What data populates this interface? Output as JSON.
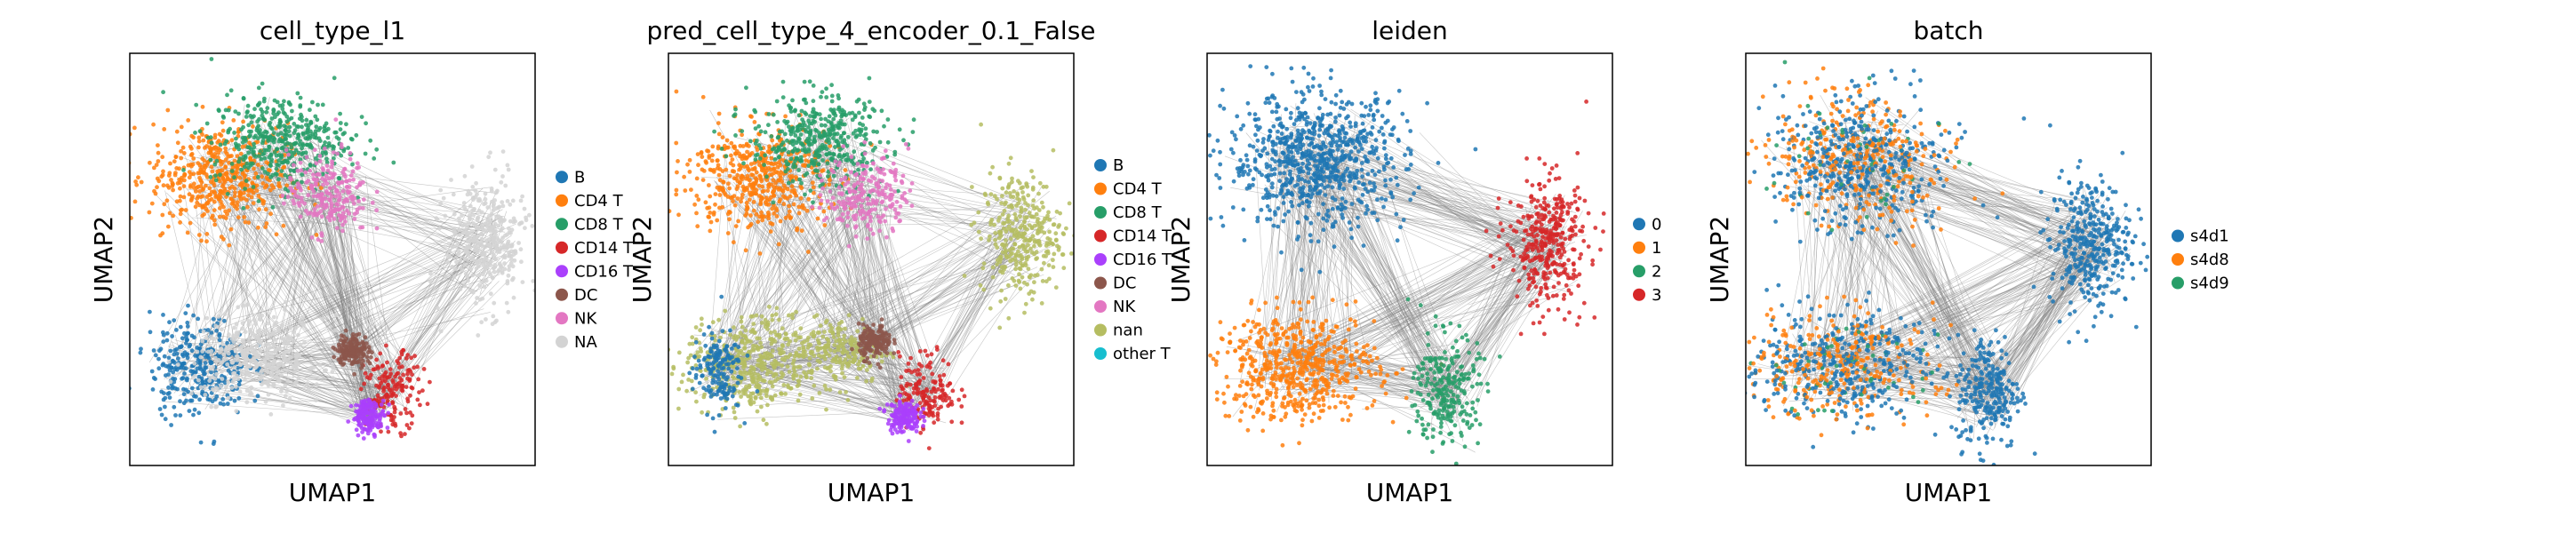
{
  "figure": {
    "background": "#ffffff",
    "edge_color": "#808080",
    "panel_border_color": "#000000"
  },
  "chart_data": [
    {
      "type": "scatter",
      "title": "cell_type_l1",
      "xlabel": "UMAP1",
      "ylabel": "UMAP2",
      "legend": {
        "placement": "right",
        "entries": [
          {
            "label": "B",
            "color": "#1f77b4"
          },
          {
            "label": "CD4 T",
            "color": "#ff7f0e"
          },
          {
            "label": "CD8 T",
            "color": "#279e68"
          },
          {
            "label": "CD14 T",
            "color": "#d62728"
          },
          {
            "label": "CD16 T",
            "color": "#aa40fc"
          },
          {
            "label": "DC",
            "color": "#8c564b"
          },
          {
            "label": "NK",
            "color": "#e377c2"
          },
          {
            "label": "NA",
            "color": "#d3d3d3"
          }
        ]
      },
      "clusters": [
        {
          "label": "CD4 T",
          "x": 0.22,
          "y": 0.7,
          "sx": 0.085,
          "sy": 0.065
        },
        {
          "label": "CD8 T",
          "x": 0.37,
          "y": 0.79,
          "sx": 0.085,
          "sy": 0.055
        },
        {
          "label": "NK",
          "x": 0.49,
          "y": 0.66,
          "sx": 0.05,
          "sy": 0.05
        },
        {
          "label": "B",
          "x": 0.17,
          "y": 0.24,
          "sx": 0.06,
          "sy": 0.06
        },
        {
          "label": "NA",
          "x": 0.32,
          "y": 0.26,
          "sx": 0.08,
          "sy": 0.05
        },
        {
          "label": "NA",
          "x": 0.88,
          "y": 0.54,
          "sx": 0.05,
          "sy": 0.08
        },
        {
          "label": "CD14 T",
          "x": 0.65,
          "y": 0.18,
          "sx": 0.035,
          "sy": 0.045
        },
        {
          "label": "CD16 T",
          "x": 0.59,
          "y": 0.12,
          "sx": 0.02,
          "sy": 0.02
        },
        {
          "label": "DC",
          "x": 0.55,
          "y": 0.28,
          "sx": 0.02,
          "sy": 0.02
        }
      ]
    },
    {
      "type": "scatter",
      "title": "pred_cell_type_4_encoder_0.1_False",
      "xlabel": "UMAP1",
      "ylabel": "UMAP2",
      "legend": {
        "placement": "right",
        "entries": [
          {
            "label": "B",
            "color": "#1f77b4"
          },
          {
            "label": "CD4 T",
            "color": "#ff7f0e"
          },
          {
            "label": "CD8 T",
            "color": "#279e68"
          },
          {
            "label": "CD14 T",
            "color": "#d62728"
          },
          {
            "label": "CD16 T",
            "color": "#aa40fc"
          },
          {
            "label": "DC",
            "color": "#8c564b"
          },
          {
            "label": "NK",
            "color": "#e377c2"
          },
          {
            "label": "nan",
            "color": "#b5bd61"
          },
          {
            "label": "other T",
            "color": "#17becf"
          }
        ]
      },
      "clusters": [
        {
          "label": "CD4 T",
          "x": 0.22,
          "y": 0.7,
          "sx": 0.085,
          "sy": 0.065
        },
        {
          "label": "CD8 T",
          "x": 0.37,
          "y": 0.79,
          "sx": 0.085,
          "sy": 0.055
        },
        {
          "label": "NK",
          "x": 0.49,
          "y": 0.66,
          "sx": 0.05,
          "sy": 0.05
        },
        {
          "label": "nan",
          "x": 0.2,
          "y": 0.24,
          "sx": 0.08,
          "sy": 0.06
        },
        {
          "label": "nan",
          "x": 0.42,
          "y": 0.28,
          "sx": 0.06,
          "sy": 0.04
        },
        {
          "label": "nan",
          "x": 0.87,
          "y": 0.56,
          "sx": 0.05,
          "sy": 0.075
        },
        {
          "label": "B",
          "x": 0.12,
          "y": 0.23,
          "sx": 0.03,
          "sy": 0.05
        },
        {
          "label": "CD14 T",
          "x": 0.64,
          "y": 0.18,
          "sx": 0.035,
          "sy": 0.045
        },
        {
          "label": "CD16 T",
          "x": 0.58,
          "y": 0.12,
          "sx": 0.02,
          "sy": 0.02
        },
        {
          "label": "DC",
          "x": 0.51,
          "y": 0.3,
          "sx": 0.02,
          "sy": 0.02
        }
      ]
    },
    {
      "type": "scatter",
      "title": "leiden",
      "xlabel": "UMAP1",
      "ylabel": "UMAP2",
      "legend": {
        "placement": "right",
        "entries": [
          {
            "label": "0",
            "color": "#1f77b4"
          },
          {
            "label": "1",
            "color": "#ff7f0e"
          },
          {
            "label": "2",
            "color": "#279e68"
          },
          {
            "label": "3",
            "color": "#d62728"
          }
        ]
      },
      "clusters": [
        {
          "label": "0",
          "x": 0.27,
          "y": 0.74,
          "sx": 0.11,
          "sy": 0.08
        },
        {
          "label": "1",
          "x": 0.22,
          "y": 0.24,
          "sx": 0.1,
          "sy": 0.065
        },
        {
          "label": "2",
          "x": 0.59,
          "y": 0.18,
          "sx": 0.04,
          "sy": 0.07
        },
        {
          "label": "3",
          "x": 0.84,
          "y": 0.54,
          "sx": 0.05,
          "sy": 0.08
        }
      ]
    },
    {
      "type": "scatter",
      "title": "batch",
      "xlabel": "UMAP1",
      "ylabel": "UMAP2",
      "legend": {
        "placement": "right",
        "entries": [
          {
            "label": "s4d1",
            "color": "#1f77b4"
          },
          {
            "label": "s4d8",
            "color": "#ff7f0e"
          },
          {
            "label": "s4d9",
            "color": "#279e68"
          }
        ]
      },
      "clusters": [
        {
          "label": "mixed",
          "x": 0.27,
          "y": 0.74,
          "sx": 0.11,
          "sy": 0.08
        },
        {
          "label": "mixed",
          "x": 0.23,
          "y": 0.24,
          "sx": 0.12,
          "sy": 0.065
        },
        {
          "label": "s4d1",
          "x": 0.6,
          "y": 0.18,
          "sx": 0.04,
          "sy": 0.07
        },
        {
          "label": "s4d1",
          "x": 0.85,
          "y": 0.54,
          "sx": 0.05,
          "sy": 0.08
        }
      ]
    }
  ]
}
